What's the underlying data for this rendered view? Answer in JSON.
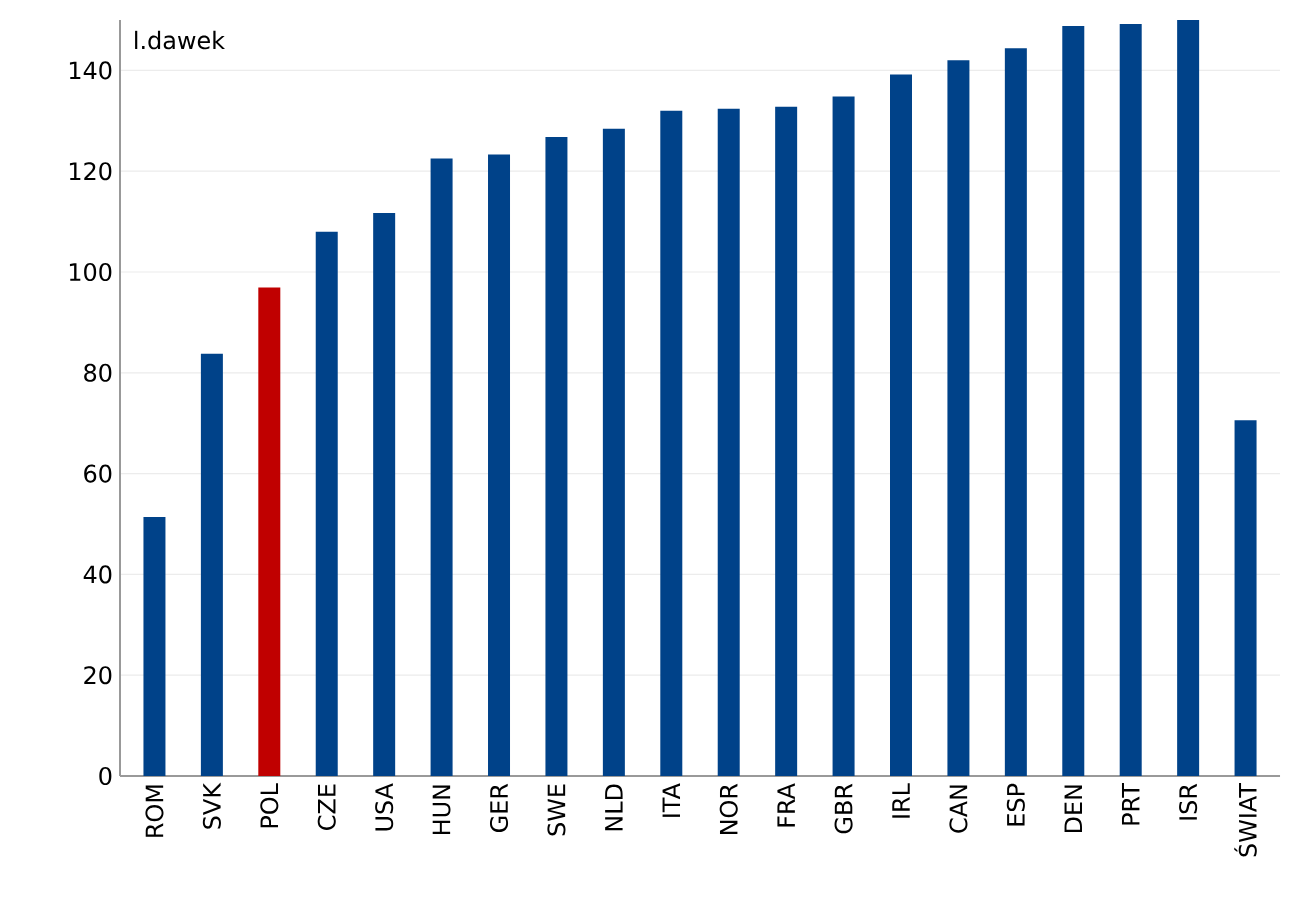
{
  "chart_data": {
    "type": "bar",
    "ylabel": "l.dawek",
    "categories": [
      "ROM",
      "SVK",
      "POL",
      "CZE",
      "USA",
      "HUN",
      "GER",
      "SWE",
      "NLD",
      "ITA",
      "NOR",
      "FRA",
      "GBR",
      "IRL",
      "CAN",
      "ESP",
      "DEN",
      "PRT",
      "ISR",
      "ŚWIAT"
    ],
    "values": [
      51.4,
      83.8,
      96.9,
      108,
      111.7,
      122.5,
      123.3,
      126.8,
      128.4,
      132,
      132.4,
      132.8,
      134.8,
      139.2,
      142,
      144.4,
      148.8,
      149.2,
      150,
      70.6
    ],
    "colors": [
      "#004289",
      "#004289",
      "#c00000",
      "#004289",
      "#004289",
      "#004289",
      "#004289",
      "#004289",
      "#004289",
      "#004289",
      "#004289",
      "#004289",
      "#004289",
      "#004289",
      "#004289",
      "#004289",
      "#004289",
      "#004289",
      "#004289",
      "#004289"
    ],
    "ylim": [
      0,
      150
    ],
    "yticks": [
      0,
      20,
      40,
      60,
      80,
      100,
      120,
      140
    ],
    "grid": "y"
  }
}
